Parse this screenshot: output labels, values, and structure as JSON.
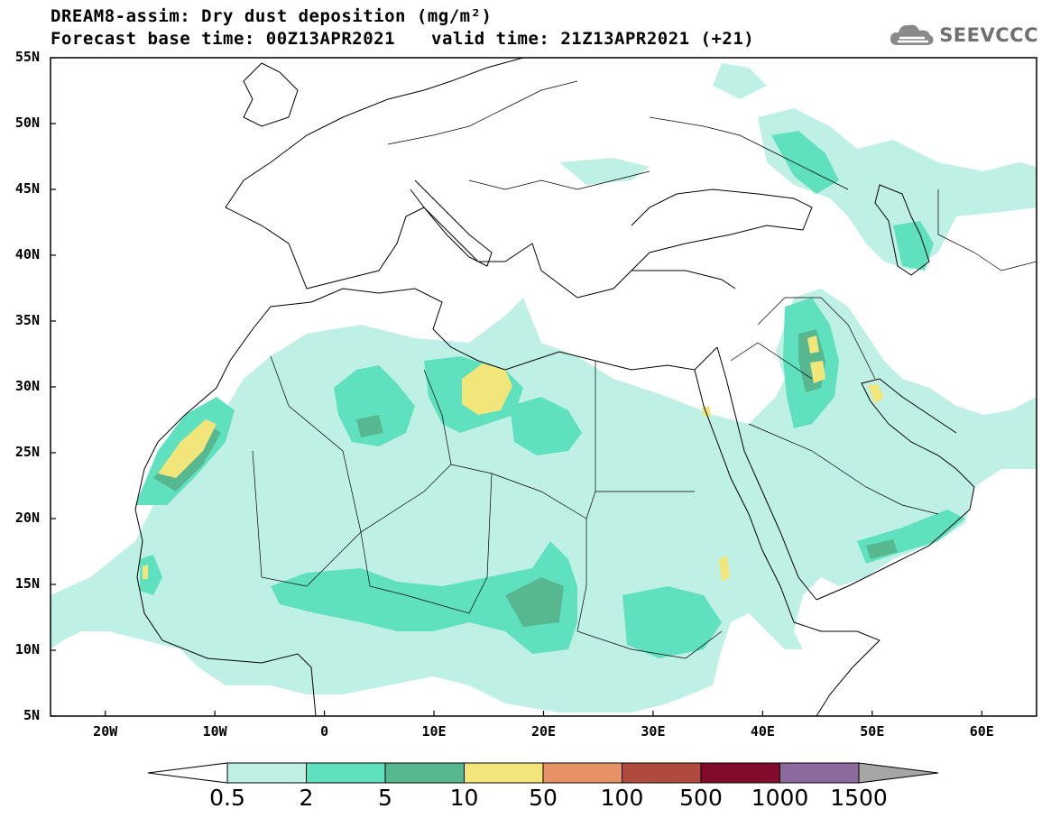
{
  "header": {
    "title": "DREAM8-assim: Dry dust deposition (mg/m²)",
    "base_time": "Forecast base time: 00Z13APR2021",
    "valid_time": "valid time: 21Z13APR2021 (+21)"
  },
  "logo": {
    "text": "SEEVCCC",
    "icon": "cloud-icon"
  },
  "map": {
    "lat_labels": [
      "55N",
      "50N",
      "45N",
      "40N",
      "35N",
      "30N",
      "25N",
      "20N",
      "15N",
      "10N",
      "5N"
    ],
    "lon_labels": [
      "20W",
      "10W",
      "0",
      "10E",
      "20E",
      "30E",
      "40E",
      "50E",
      "60E"
    ],
    "lat_range": [
      5,
      55
    ],
    "lon_range": [
      -25,
      65
    ]
  },
  "colorbar": {
    "labels": [
      "0.5",
      "2",
      "5",
      "10",
      "50",
      "100",
      "500",
      "1000",
      "1500"
    ],
    "colors": [
      "#bff0e6",
      "#5fe0bf",
      "#57b890",
      "#f2e67a",
      "#e89066",
      "#b04a3c",
      "#820a2a",
      "#8c6a9e"
    ],
    "under_color": "#ffffff",
    "over_color": "#a6a6a6"
  }
}
